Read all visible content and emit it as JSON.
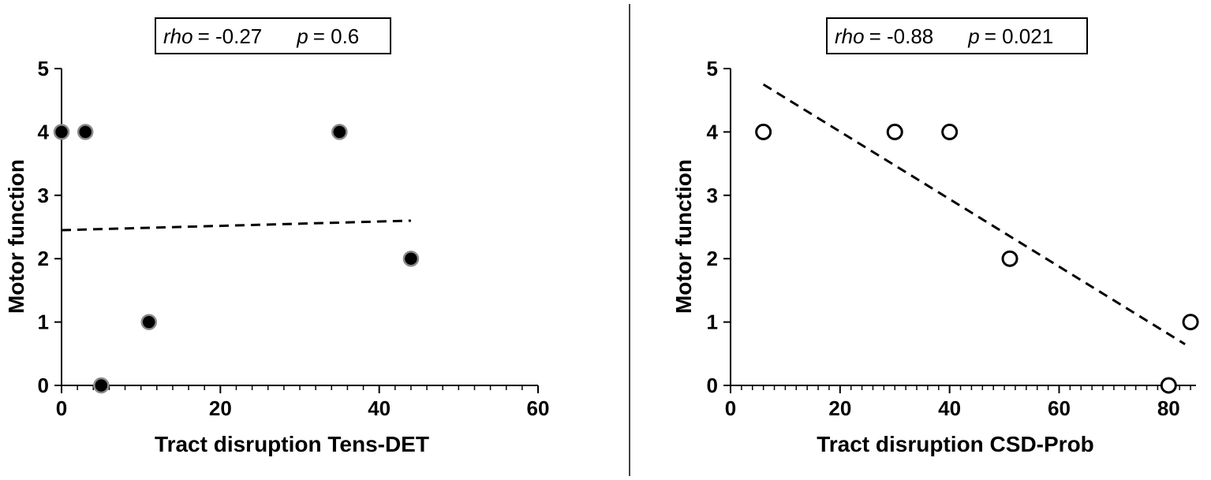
{
  "chart_data": [
    {
      "type": "scatter",
      "xlabel": "Tract disruption Tens-DET",
      "ylabel": "Motor function",
      "xlim": [
        0,
        60
      ],
      "ylim": [
        0,
        5
      ],
      "x_ticks": [
        "0",
        "20",
        "40",
        "60"
      ],
      "y_ticks": [
        "0",
        "1",
        "2",
        "3",
        "4",
        "5"
      ],
      "stats": {
        "rho_label": "rho",
        "rho_value": "= -0.27",
        "p_label": "p",
        "p_value": "= 0.6"
      },
      "marker": "filled",
      "marker_fill": "#000000",
      "marker_edge": "#8a8a8a",
      "series": [
        {
          "x": [
            0,
            3,
            35,
            44,
            11,
            5
          ],
          "y": [
            4,
            4,
            4,
            2,
            1,
            0
          ]
        }
      ],
      "trend_line": {
        "x": [
          0,
          44
        ],
        "y": [
          2.45,
          2.6
        ],
        "style": "dashed"
      }
    },
    {
      "type": "scatter",
      "xlabel": "Tract disruption CSD-Prob",
      "ylabel": "Motor function",
      "xlim": [
        0,
        85
      ],
      "ylim": [
        0,
        5
      ],
      "x_ticks": [
        "0",
        "20",
        "40",
        "60",
        "80"
      ],
      "y_ticks": [
        "0",
        "1",
        "2",
        "3",
        "4",
        "5"
      ],
      "stats": {
        "rho_label": "rho",
        "rho_value": "= -0.88",
        "p_label": "p",
        "p_value": "= 0.021"
      },
      "marker": "open",
      "marker_fill": "#ffffff",
      "marker_edge": "#000000",
      "series": [
        {
          "x": [
            6,
            30,
            40,
            51,
            84,
            80
          ],
          "y": [
            4,
            4,
            4,
            2,
            1,
            0
          ]
        }
      ],
      "trend_line": {
        "x": [
          6,
          83
        ],
        "y": [
          4.75,
          0.65
        ],
        "style": "dashed"
      }
    }
  ]
}
